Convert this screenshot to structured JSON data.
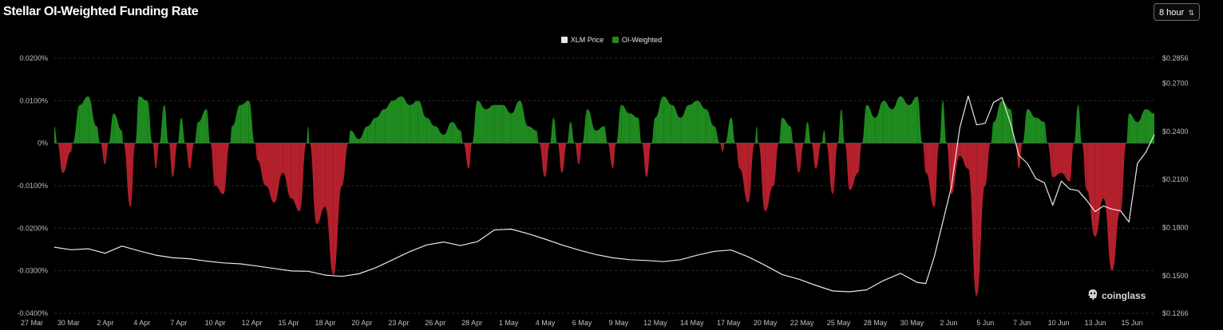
{
  "page": {
    "title": "Stellar OI-Weighted Funding Rate",
    "interval": "8 hour",
    "brand": "coinglass"
  },
  "colors": {
    "positive": "#1f8a1f",
    "negative": "#b3202c",
    "price_line": "#e8e8e8",
    "background": "#000000",
    "grid": "#2a2a2a"
  },
  "icons": {
    "interval_chevron": "up-down-chevron-icon",
    "brand": "coinglass-logo-icon"
  },
  "chart_data": {
    "type": "line",
    "title": "Stellar OI-Weighted Funding Rate",
    "legend": {
      "position": "top-center",
      "entries": [
        {
          "name": "XLM Price",
          "color": "#e8e8e8"
        },
        {
          "name": "OI-Weighted",
          "color": "#1f8a1f"
        }
      ]
    },
    "x_tick_labels": [
      "27 Mar",
      "30 Mar",
      "2 Apr",
      "4 Apr",
      "7 Apr",
      "10 Apr",
      "12 Apr",
      "15 Apr",
      "18 Apr",
      "20 Apr",
      "23 Apr",
      "26 Apr",
      "28 Apr",
      "1 May",
      "4 May",
      "6 May",
      "9 May",
      "12 May",
      "14 May",
      "17 May",
      "20 May",
      "22 May",
      "25 May",
      "28 May",
      "30 May",
      "2 Jun",
      "5 Jun",
      "7 Jun",
      "10 Jun",
      "13 Jun",
      "15 Jun"
    ],
    "y_left": {
      "label": "",
      "ticks": [
        "0.0200%",
        "0.0100%",
        "0%",
        "-0.0100%",
        "-0.0200%",
        "-0.0300%",
        "-0.0400%"
      ],
      "range": [
        -0.04,
        0.02
      ],
      "unit": "%"
    },
    "y_right": {
      "label": "",
      "ticks": [
        "$0.2856",
        "$0.2700",
        "$0.2400",
        "$0.2100",
        "$0.1800",
        "$0.1500",
        "$0.1266"
      ],
      "range": [
        0.1266,
        0.2856
      ],
      "unit": "$"
    },
    "grid": "horizontal dashed",
    "series": [
      {
        "name": "OI-Weighted",
        "axis": "left",
        "points": [
          [
            0,
            0.004
          ],
          [
            1,
            -0.007
          ],
          [
            2,
            -0.002
          ],
          [
            3,
            0.009
          ],
          [
            4,
            0.011
          ],
          [
            5,
            0.004
          ],
          [
            6,
            -0.005
          ],
          [
            7,
            0.007
          ],
          [
            8,
            0.003
          ],
          [
            9,
            -0.015
          ],
          [
            10,
            0.011
          ],
          [
            11,
            0.01
          ],
          [
            12,
            -0.006
          ],
          [
            13,
            0.009
          ],
          [
            14,
            -0.008
          ],
          [
            15,
            0.006
          ],
          [
            16,
            -0.006
          ],
          [
            17,
            0.005
          ],
          [
            18,
            0.008
          ],
          [
            19,
            -0.01
          ],
          [
            20,
            -0.012
          ],
          [
            21,
            0.004
          ],
          [
            22,
            0.009
          ],
          [
            23,
            0.01
          ],
          [
            24,
            -0.004
          ],
          [
            25,
            -0.01
          ],
          [
            26,
            -0.014
          ],
          [
            27,
            -0.007
          ],
          [
            28,
            -0.013
          ],
          [
            29,
            -0.016
          ],
          [
            30,
            0.004
          ],
          [
            31,
            -0.019
          ],
          [
            32,
            -0.015
          ],
          [
            33,
            -0.031
          ],
          [
            34,
            -0.01
          ],
          [
            35,
            0.003
          ],
          [
            36,
            0.001
          ],
          [
            37,
            0.004
          ],
          [
            38,
            0.006
          ],
          [
            39,
            0.008
          ],
          [
            40,
            0.01
          ],
          [
            41,
            0.011
          ],
          [
            42,
            0.009
          ],
          [
            43,
            0.01
          ],
          [
            44,
            0.006
          ],
          [
            45,
            0.004
          ],
          [
            46,
            0.002
          ],
          [
            47,
            0.005
          ],
          [
            48,
            0.003
          ],
          [
            49,
            -0.006
          ],
          [
            50,
            0.01
          ],
          [
            51,
            0.008
          ],
          [
            52,
            0.009
          ],
          [
            53,
            0.009
          ],
          [
            54,
            0.007
          ],
          [
            55,
            0.01
          ],
          [
            56,
            0.004
          ],
          [
            57,
            0.003
          ],
          [
            58,
            -0.008
          ],
          [
            59,
            0.006
          ],
          [
            60,
            -0.007
          ],
          [
            61,
            0.005
          ],
          [
            62,
            -0.005
          ],
          [
            63,
            0.008
          ],
          [
            64,
            0.003
          ],
          [
            65,
            0.004
          ],
          [
            66,
            -0.006
          ],
          [
            67,
            0.009
          ],
          [
            68,
            0.007
          ],
          [
            69,
            0.006
          ],
          [
            70,
            -0.008
          ],
          [
            71,
            0.006
          ],
          [
            72,
            0.011
          ],
          [
            73,
            0.009
          ],
          [
            74,
            0.006
          ],
          [
            75,
            0.009
          ],
          [
            76,
            0.01
          ],
          [
            77,
            0.008
          ],
          [
            78,
            0.004
          ],
          [
            79,
            -0.002
          ],
          [
            80,
            0.006
          ],
          [
            81,
            -0.006
          ],
          [
            82,
            -0.014
          ],
          [
            83,
            0.004
          ],
          [
            84,
            -0.016
          ],
          [
            85,
            -0.01
          ],
          [
            86,
            0.006
          ],
          [
            87,
            0.004
          ],
          [
            88,
            -0.007
          ],
          [
            89,
            0.005
          ],
          [
            90,
            -0.006
          ],
          [
            91,
            0.003
          ],
          [
            92,
            -0.012
          ],
          [
            93,
            0.008
          ],
          [
            94,
            -0.011
          ],
          [
            95,
            -0.007
          ],
          [
            96,
            0.009
          ],
          [
            97,
            0.006
          ],
          [
            98,
            0.01
          ],
          [
            99,
            0.008
          ],
          [
            100,
            0.011
          ],
          [
            101,
            0.009
          ],
          [
            102,
            0.011
          ],
          [
            103,
            -0.007
          ],
          [
            104,
            -0.015
          ],
          [
            105,
            0.01
          ],
          [
            106,
            -0.012
          ],
          [
            107,
            -0.003
          ],
          [
            108,
            -0.006
          ],
          [
            109,
            -0.036
          ],
          [
            110,
            -0.01
          ],
          [
            111,
            0.005
          ],
          [
            112,
            0.01
          ],
          [
            113,
            0.008
          ],
          [
            114,
            -0.006
          ],
          [
            115,
            0.008
          ],
          [
            116,
            0.006
          ],
          [
            117,
            0.005
          ],
          [
            118,
            -0.008
          ],
          [
            119,
            -0.007
          ],
          [
            120,
            -0.009
          ],
          [
            121,
            0.009
          ],
          [
            122,
            -0.011
          ],
          [
            123,
            -0.022
          ],
          [
            124,
            -0.013
          ],
          [
            125,
            -0.03
          ],
          [
            126,
            -0.016
          ],
          [
            127,
            0.007
          ],
          [
            128,
            0.005
          ],
          [
            129,
            0.008
          ],
          [
            130,
            0.007
          ]
        ]
      },
      {
        "name": "XLM Price",
        "axis": "right",
        "points": [
          [
            0,
            0.1678
          ],
          [
            2,
            0.1662
          ],
          [
            4,
            0.1668
          ],
          [
            6,
            0.164
          ],
          [
            8,
            0.1685
          ],
          [
            10,
            0.1655
          ],
          [
            12,
            0.1628
          ],
          [
            14,
            0.1612
          ],
          [
            16,
            0.1606
          ],
          [
            18,
            0.1591
          ],
          [
            20,
            0.158
          ],
          [
            22,
            0.1574
          ],
          [
            24,
            0.156
          ],
          [
            26,
            0.1545
          ],
          [
            28,
            0.153
          ],
          [
            30,
            0.1528
          ],
          [
            32,
            0.1504
          ],
          [
            34,
            0.1496
          ],
          [
            36,
            0.1512
          ],
          [
            38,
            0.155
          ],
          [
            40,
            0.16
          ],
          [
            42,
            0.165
          ],
          [
            44,
            0.1692
          ],
          [
            46,
            0.171
          ],
          [
            48,
            0.1688
          ],
          [
            50,
            0.1712
          ],
          [
            52,
            0.1785
          ],
          [
            54,
            0.179
          ],
          [
            56,
            0.1762
          ],
          [
            58,
            0.1728
          ],
          [
            60,
            0.1692
          ],
          [
            62,
            0.166
          ],
          [
            64,
            0.1632
          ],
          [
            66,
            0.1612
          ],
          [
            68,
            0.16
          ],
          [
            70,
            0.1595
          ],
          [
            72,
            0.1588
          ],
          [
            74,
            0.16
          ],
          [
            76,
            0.1628
          ],
          [
            78,
            0.1652
          ],
          [
            80,
            0.166
          ],
          [
            82,
            0.1618
          ],
          [
            84,
            0.1565
          ],
          [
            86,
            0.1508
          ],
          [
            88,
            0.1478
          ],
          [
            90,
            0.144
          ],
          [
            92,
            0.1405
          ],
          [
            94,
            0.14
          ],
          [
            96,
            0.1412
          ],
          [
            98,
            0.147
          ],
          [
            100,
            0.1515
          ],
          [
            102,
            0.1458
          ],
          [
            103,
            0.1452
          ],
          [
            104,
            0.162
          ],
          [
            106,
            0.205
          ],
          [
            107,
            0.242
          ],
          [
            108,
            0.262
          ],
          [
            109,
            0.244
          ],
          [
            110,
            0.245
          ],
          [
            111,
            0.258
          ],
          [
            112,
            0.261
          ],
          [
            113,
            0.245
          ],
          [
            114,
            0.225
          ],
          [
            115,
            0.22
          ],
          [
            116,
            0.2105
          ],
          [
            117,
            0.208
          ],
          [
            118,
            0.194
          ],
          [
            119,
            0.209
          ],
          [
            120,
            0.204
          ],
          [
            121,
            0.203
          ],
          [
            122,
            0.197
          ],
          [
            123,
            0.19
          ],
          [
            124,
            0.1935
          ],
          [
            125,
            0.1915
          ],
          [
            126,
            0.1905
          ],
          [
            127,
            0.1835
          ],
          [
            128,
            0.22
          ],
          [
            129,
            0.227
          ],
          [
            130,
            0.238
          ]
        ]
      }
    ]
  }
}
